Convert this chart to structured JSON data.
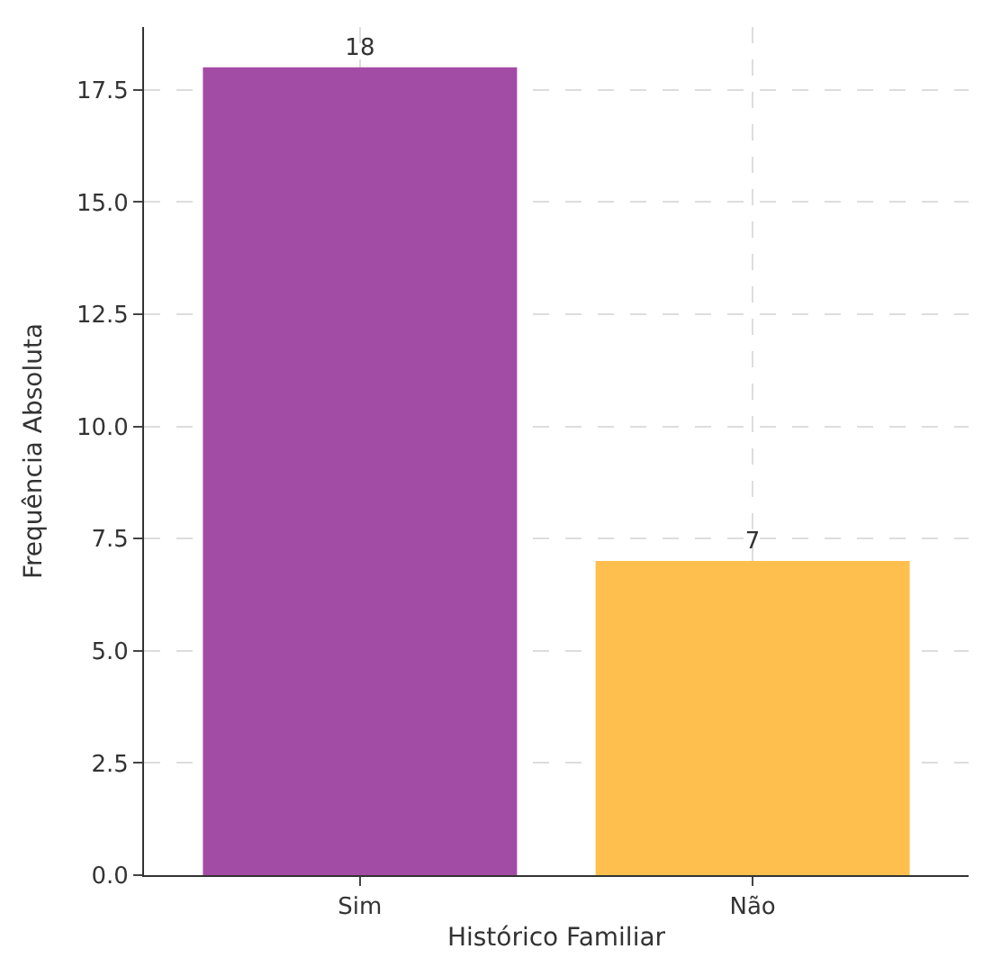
{
  "chart_data": {
    "type": "bar",
    "xlabel": "Histórico Familiar",
    "ylabel": "Frequência Absoluta",
    "categories": [
      "Sim",
      "Não"
    ],
    "values": [
      18,
      7
    ],
    "colors": [
      "#a24ca5",
      "#febf4f"
    ],
    "ylim": [
      0,
      18.9
    ],
    "yticks": [
      {
        "value": 0,
        "label": "0.0"
      },
      2.5,
      {
        "value": 5,
        "label": "5.0"
      },
      7.5,
      {
        "value": 10,
        "label": "10.0"
      },
      12.5,
      {
        "value": 15,
        "label": "15.0"
      },
      17.5
    ],
    "grid": true,
    "data_labels": true
  }
}
